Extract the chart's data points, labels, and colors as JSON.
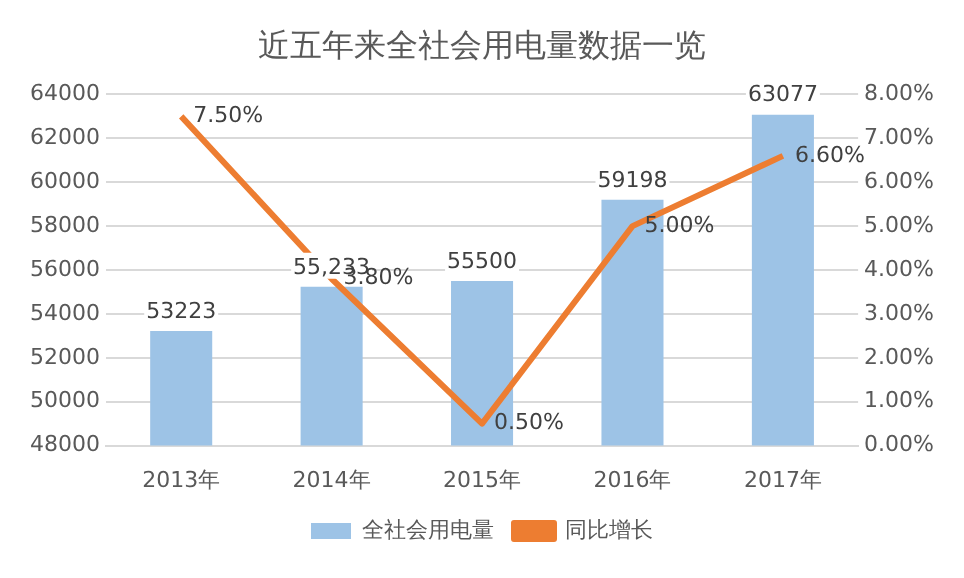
{
  "chart_data": {
    "type": "bar",
    "title": "近五年来全社会用电量数据一览",
    "categories": [
      "2013年",
      "2014年",
      "2015年",
      "2016年",
      "2017年"
    ],
    "series": [
      {
        "name": "全社会用电量",
        "color": "#9dc3e6",
        "values": [
          53223,
          55233,
          55500,
          59198,
          63077
        ],
        "value_labels": [
          "53223",
          "55,233",
          "55500",
          "59198",
          "63077"
        ]
      },
      {
        "name": "同比增长",
        "type": "line",
        "axis": "y2",
        "color": "#ed7d31",
        "marker": "none",
        "values": [
          7.5,
          3.8,
          0.5,
          5.0,
          6.6
        ],
        "value_labels": [
          "7.50%",
          "3.80%",
          "0.50%",
          "5.00%",
          "6.60%"
        ]
      }
    ],
    "ylim": [
      48000,
      64000
    ],
    "yticks": [
      48000,
      50000,
      52000,
      54000,
      56000,
      58000,
      60000,
      62000,
      64000
    ],
    "y2lim": [
      0,
      8
    ],
    "y2ticks": [
      {
        "value": 0,
        "label": "0.00%"
      },
      {
        "value": 1,
        "label": "1.00%"
      },
      {
        "value": 2,
        "label": "2.00%"
      },
      {
        "value": 3,
        "label": "3.00%"
      },
      {
        "value": 4,
        "label": "4.00%"
      },
      {
        "value": 5,
        "label": "5.00%"
      },
      {
        "value": 6,
        "label": "6.00%"
      },
      {
        "value": 7,
        "label": "7.00%"
      },
      {
        "value": 8,
        "label": "8.00%"
      }
    ],
    "grid": "y",
    "legend": "bottom"
  }
}
